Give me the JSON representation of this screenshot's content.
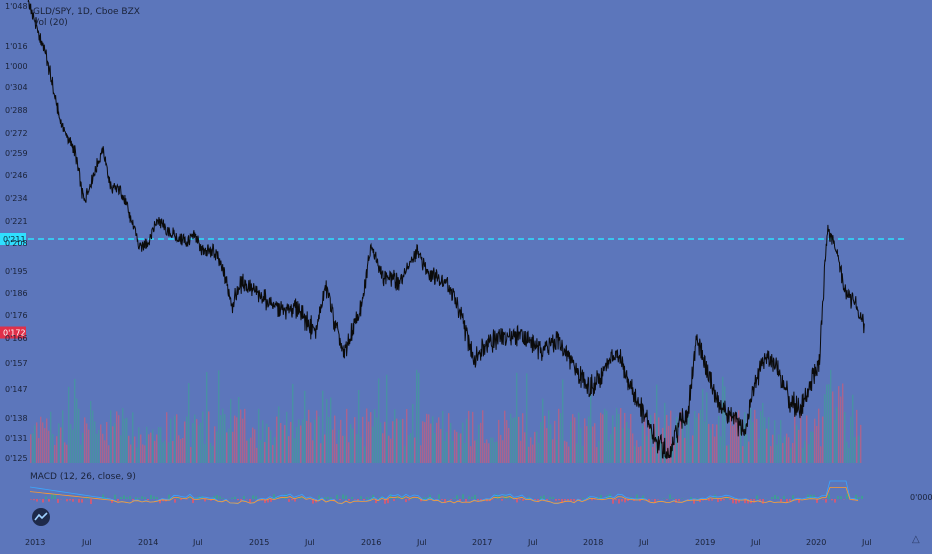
{
  "legend": {
    "symbol": "GLD/SPY, 1D, Cboe BZX",
    "volume": "Vol (20)",
    "macd": "MACD (12, 26, close, 9)"
  },
  "colors": {
    "background": "#5c76bb",
    "price_line": "#0b0b0b",
    "hline": "#2fe0ff",
    "last_price_tag": "#e0304a",
    "vol_up": "#3aa58f",
    "vol_down": "#e9556a",
    "macd_line": "#3aa7ff",
    "signal_line": "#ff9a2e",
    "axis_text": "#1a2238"
  },
  "chart_data": {
    "type": "line",
    "title": "GLD/SPY, 1D, Cboe BZX",
    "price_axis": {
      "ticks": [
        "1'048",
        "1'016",
        "1'000",
        "0'304",
        "0'288",
        "0'272",
        "0'259",
        "0'246",
        "0'234",
        "0'221",
        "0'208",
        "0'195",
        "0'186",
        "0'176",
        "0'166",
        "0'157",
        "0'147",
        "0'138",
        "0'131",
        "0'125"
      ],
      "horizontal_line_label": "0'211",
      "last_price_label": "0'172",
      "macd_pane_tick": "0'000"
    },
    "time_axis": {
      "ticks": [
        "2013",
        "Jul",
        "2014",
        "Jul",
        "2015",
        "Jul",
        "2016",
        "Jul",
        "2017",
        "Jul",
        "2018",
        "Jul",
        "2019",
        "Jul",
        "2020",
        "Jul"
      ]
    },
    "series": [
      {
        "key": "ratio",
        "points": [
          [
            2013.0,
            0.345
          ],
          [
            2013.08,
            0.33
          ],
          [
            2013.17,
            0.315
          ],
          [
            2013.3,
            0.278
          ],
          [
            2013.42,
            0.26
          ],
          [
            2013.5,
            0.232
          ],
          [
            2013.58,
            0.245
          ],
          [
            2013.67,
            0.262
          ],
          [
            2013.75,
            0.238
          ],
          [
            2013.83,
            0.24
          ],
          [
            2013.92,
            0.222
          ],
          [
            2014.0,
            0.208
          ],
          [
            2014.08,
            0.21
          ],
          [
            2014.17,
            0.222
          ],
          [
            2014.25,
            0.215
          ],
          [
            2014.42,
            0.21
          ],
          [
            2014.5,
            0.212
          ],
          [
            2014.58,
            0.204
          ],
          [
            2014.67,
            0.205
          ],
          [
            2014.75,
            0.195
          ],
          [
            2014.83,
            0.18
          ],
          [
            2014.92,
            0.19
          ],
          [
            2015.08,
            0.184
          ],
          [
            2015.25,
            0.178
          ],
          [
            2015.42,
            0.178
          ],
          [
            2015.58,
            0.168
          ],
          [
            2015.67,
            0.188
          ],
          [
            2015.75,
            0.172
          ],
          [
            2015.83,
            0.16
          ],
          [
            2015.92,
            0.17
          ],
          [
            2016.0,
            0.18
          ],
          [
            2016.08,
            0.21
          ],
          [
            2016.17,
            0.193
          ],
          [
            2016.33,
            0.19
          ],
          [
            2016.42,
            0.198
          ],
          [
            2016.5,
            0.205
          ],
          [
            2016.58,
            0.195
          ],
          [
            2016.75,
            0.19
          ],
          [
            2016.83,
            0.182
          ],
          [
            2016.92,
            0.17
          ],
          [
            2017.0,
            0.158
          ],
          [
            2017.08,
            0.164
          ],
          [
            2017.25,
            0.167
          ],
          [
            2017.42,
            0.168
          ],
          [
            2017.58,
            0.162
          ],
          [
            2017.75,
            0.165
          ],
          [
            2017.92,
            0.155
          ],
          [
            2018.0,
            0.15
          ],
          [
            2018.08,
            0.148
          ],
          [
            2018.17,
            0.155
          ],
          [
            2018.25,
            0.16
          ],
          [
            2018.33,
            0.157
          ],
          [
            2018.42,
            0.147
          ],
          [
            2018.58,
            0.135
          ],
          [
            2018.67,
            0.129
          ],
          [
            2018.75,
            0.125
          ],
          [
            2018.83,
            0.135
          ],
          [
            2018.92,
            0.14
          ],
          [
            2019.0,
            0.166
          ],
          [
            2019.08,
            0.155
          ],
          [
            2019.17,
            0.145
          ],
          [
            2019.25,
            0.14
          ],
          [
            2019.33,
            0.138
          ],
          [
            2019.42,
            0.133
          ],
          [
            2019.5,
            0.147
          ],
          [
            2019.58,
            0.157
          ],
          [
            2019.67,
            0.16
          ],
          [
            2019.75,
            0.152
          ],
          [
            2019.83,
            0.144
          ],
          [
            2019.92,
            0.141
          ],
          [
            2020.0,
            0.148
          ],
          [
            2020.1,
            0.158
          ],
          [
            2020.17,
            0.215
          ],
          [
            2020.25,
            0.205
          ],
          [
            2020.33,
            0.185
          ],
          [
            2020.42,
            0.18
          ],
          [
            2020.5,
            0.172
          ]
        ]
      }
    ],
    "horizontal_line": 0.211,
    "last_value": 0.172,
    "volume_pane": true,
    "macd_pane": true,
    "grid": false
  }
}
